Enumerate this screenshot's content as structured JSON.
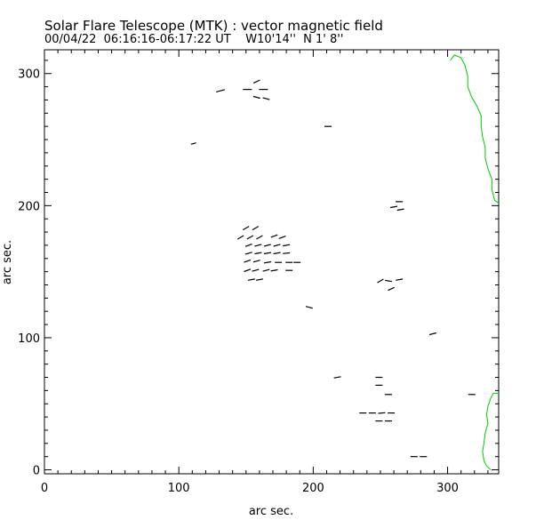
{
  "header": {
    "title": "Solar Flare Telescope (MTK) : vector magnetic field",
    "subtitle": "00/04/22  06:16:16-06:17:22 UT    W10'14''  N 1' 8''"
  },
  "chart_data": {
    "type": "scatter",
    "title": "Solar Flare Telescope (MTK) : vector magnetic field",
    "xlabel": "arc sec.",
    "ylabel": "arc sec.",
    "xlim": [
      0,
      338
    ],
    "ylim": [
      -3,
      318
    ],
    "xticks": [
      0,
      100,
      200,
      300
    ],
    "yticks": [
      0,
      100,
      200,
      300
    ],
    "xtick_labels": [
      "0",
      "100",
      "200",
      "300"
    ],
    "ytick_labels": [
      "0",
      "100",
      "200",
      "300"
    ],
    "vector_color": "#000000",
    "limb_color": "#00cc00",
    "vectors": [
      {
        "x": 131,
        "y": 287,
        "angle": 15,
        "len": 5
      },
      {
        "x": 151,
        "y": 288,
        "angle": 0,
        "len": 5
      },
      {
        "x": 158,
        "y": 294,
        "angle": 25,
        "len": 4
      },
      {
        "x": 163,
        "y": 288,
        "angle": 0,
        "len": 5
      },
      {
        "x": 158,
        "y": 282,
        "angle": -15,
        "len": 4
      },
      {
        "x": 165,
        "y": 281,
        "angle": -15,
        "len": 4
      },
      {
        "x": 111,
        "y": 247,
        "angle": 15,
        "len": 3
      },
      {
        "x": 211,
        "y": 260,
        "angle": 0,
        "len": 4
      },
      {
        "x": 260,
        "y": 199,
        "angle": 10,
        "len": 4
      },
      {
        "x": 264,
        "y": 203,
        "angle": 0,
        "len": 4
      },
      {
        "x": 265,
        "y": 197,
        "angle": 10,
        "len": 4
      },
      {
        "x": 150,
        "y": 183,
        "angle": 30,
        "len": 4
      },
      {
        "x": 157,
        "y": 183,
        "angle": 30,
        "len": 4
      },
      {
        "x": 146,
        "y": 176,
        "angle": 30,
        "len": 4
      },
      {
        "x": 153,
        "y": 176,
        "angle": 30,
        "len": 4
      },
      {
        "x": 160,
        "y": 176,
        "angle": 30,
        "len": 4
      },
      {
        "x": 171,
        "y": 177,
        "angle": 20,
        "len": 4
      },
      {
        "x": 177,
        "y": 176,
        "angle": 20,
        "len": 4
      },
      {
        "x": 152,
        "y": 170,
        "angle": 20,
        "len": 4
      },
      {
        "x": 159,
        "y": 170,
        "angle": 15,
        "len": 4
      },
      {
        "x": 166,
        "y": 170,
        "angle": 15,
        "len": 4
      },
      {
        "x": 173,
        "y": 170,
        "angle": 15,
        "len": 4
      },
      {
        "x": 180,
        "y": 170,
        "angle": 10,
        "len": 4
      },
      {
        "x": 152,
        "y": 164,
        "angle": 15,
        "len": 4
      },
      {
        "x": 159,
        "y": 164,
        "angle": 10,
        "len": 4
      },
      {
        "x": 166,
        "y": 164,
        "angle": 10,
        "len": 4
      },
      {
        "x": 173,
        "y": 164,
        "angle": 10,
        "len": 4
      },
      {
        "x": 180,
        "y": 164,
        "angle": 5,
        "len": 4
      },
      {
        "x": 151,
        "y": 158,
        "angle": 20,
        "len": 4
      },
      {
        "x": 158,
        "y": 158,
        "angle": 15,
        "len": 4
      },
      {
        "x": 166,
        "y": 157,
        "angle": 10,
        "len": 4
      },
      {
        "x": 174,
        "y": 157,
        "angle": 0,
        "len": 4
      },
      {
        "x": 182,
        "y": 157,
        "angle": 0,
        "len": 4
      },
      {
        "x": 188,
        "y": 157,
        "angle": 0,
        "len": 4
      },
      {
        "x": 151,
        "y": 151,
        "angle": 20,
        "len": 4
      },
      {
        "x": 157,
        "y": 151,
        "angle": 15,
        "len": 4
      },
      {
        "x": 165,
        "y": 151,
        "angle": 15,
        "len": 4
      },
      {
        "x": 171,
        "y": 151,
        "angle": 10,
        "len": 4
      },
      {
        "x": 182,
        "y": 151,
        "angle": 0,
        "len": 4
      },
      {
        "x": 154,
        "y": 144,
        "angle": 10,
        "len": 4
      },
      {
        "x": 160,
        "y": 144,
        "angle": 10,
        "len": 4
      },
      {
        "x": 250,
        "y": 143,
        "angle": 30,
        "len": 4
      },
      {
        "x": 256,
        "y": 143,
        "angle": -10,
        "len": 4
      },
      {
        "x": 264,
        "y": 144,
        "angle": 10,
        "len": 4
      },
      {
        "x": 258,
        "y": 137,
        "angle": 25,
        "len": 4
      },
      {
        "x": 197,
        "y": 123,
        "angle": -15,
        "len": 4
      },
      {
        "x": 289,
        "y": 103,
        "angle": 15,
        "len": 4
      },
      {
        "x": 218,
        "y": 70,
        "angle": 10,
        "len": 4
      },
      {
        "x": 249,
        "y": 70,
        "angle": 0,
        "len": 4
      },
      {
        "x": 249,
        "y": 64,
        "angle": 0,
        "len": 4
      },
      {
        "x": 256,
        "y": 57,
        "angle": 0,
        "len": 4
      },
      {
        "x": 318,
        "y": 57,
        "angle": 0,
        "len": 4
      },
      {
        "x": 237,
        "y": 43,
        "angle": 0,
        "len": 4
      },
      {
        "x": 244,
        "y": 43,
        "angle": 0,
        "len": 4
      },
      {
        "x": 251,
        "y": 43,
        "angle": 5,
        "len": 4
      },
      {
        "x": 258,
        "y": 43,
        "angle": 0,
        "len": 4
      },
      {
        "x": 249,
        "y": 37,
        "angle": 0,
        "len": 4
      },
      {
        "x": 256,
        "y": 37,
        "angle": 0,
        "len": 4
      },
      {
        "x": 275,
        "y": 10,
        "angle": 0,
        "len": 4
      },
      {
        "x": 282,
        "y": 10,
        "angle": 0,
        "len": 4
      }
    ],
    "limb_upper": [
      [
        302,
        310
      ],
      [
        305,
        314
      ],
      [
        310,
        312
      ],
      [
        313,
        306
      ],
      [
        315,
        298
      ],
      [
        315,
        290
      ],
      [
        318,
        282
      ],
      [
        322,
        275
      ],
      [
        325,
        268
      ],
      [
        325,
        260
      ],
      [
        326,
        252
      ],
      [
        328,
        244
      ],
      [
        328,
        236
      ],
      [
        330,
        228
      ],
      [
        333,
        220
      ],
      [
        333,
        212
      ],
      [
        335,
        204
      ],
      [
        338,
        202
      ]
    ],
    "limb_lower": [
      [
        338,
        58
      ],
      [
        334,
        58
      ],
      [
        332,
        54
      ],
      [
        330,
        48
      ],
      [
        329,
        42
      ],
      [
        330,
        35
      ],
      [
        328,
        28
      ],
      [
        327,
        20
      ],
      [
        326,
        14
      ],
      [
        327,
        7
      ],
      [
        329,
        3
      ],
      [
        332,
        0
      ]
    ]
  }
}
